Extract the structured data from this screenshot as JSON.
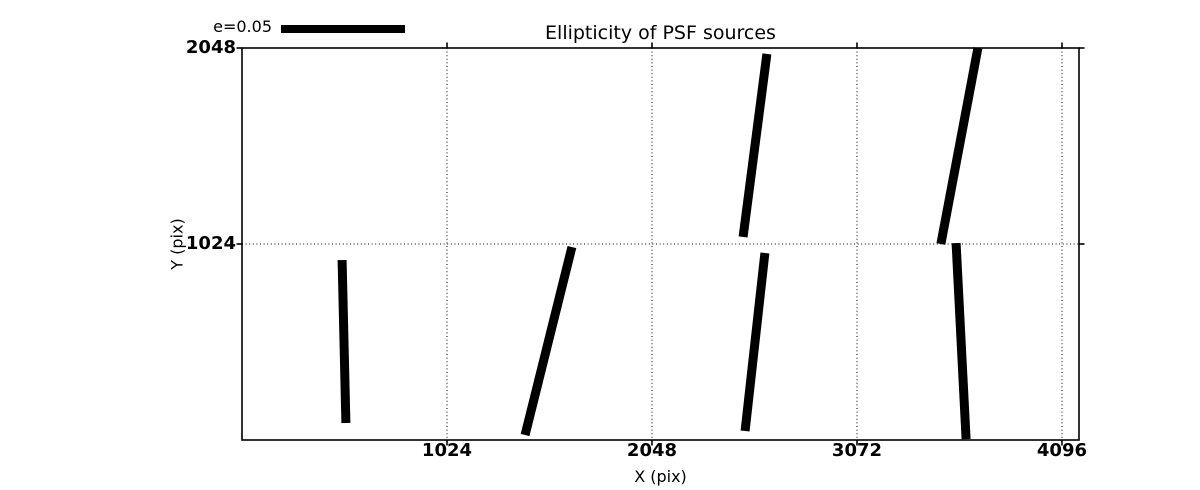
{
  "figure": {
    "title": "Ellipticity of PSF sources",
    "xlabel": "X (pix)",
    "ylabel": "Y (pix)"
  },
  "legend": {
    "label": "e=0.05",
    "key_length_data_units": 619
  },
  "colors": {
    "foreground": "#000000",
    "background": "#ffffff"
  },
  "chart_data": {
    "type": "line",
    "subtype": "ellipticity-whisker-segments",
    "title": "Ellipticity of PSF sources",
    "xlabel": "X (pix)",
    "ylabel": "Y (pix)",
    "xlim": [
      0,
      4181
    ],
    "ylim": [
      0,
      2048
    ],
    "x_ticks": [
      1024,
      2048,
      3072,
      4096
    ],
    "y_ticks": [
      1024,
      2048
    ],
    "grid": "dotted",
    "legend_position": "top-left-outside",
    "segments": [
      {
        "x1": 500,
        "y1": 940,
        "x2": 519,
        "y2": 89
      },
      {
        "x1": 1648,
        "y1": 1008,
        "x2": 1414,
        "y2": 26
      },
      {
        "x1": 2612,
        "y1": 977,
        "x2": 2513,
        "y2": 47
      },
      {
        "x1": 3567,
        "y1": 1029,
        "x2": 3617,
        "y2": 5
      },
      {
        "x1": 2622,
        "y1": 2017,
        "x2": 2503,
        "y2": 1061
      },
      {
        "x1": 3676,
        "y1": 2048,
        "x2": 3491,
        "y2": 1024
      }
    ]
  }
}
